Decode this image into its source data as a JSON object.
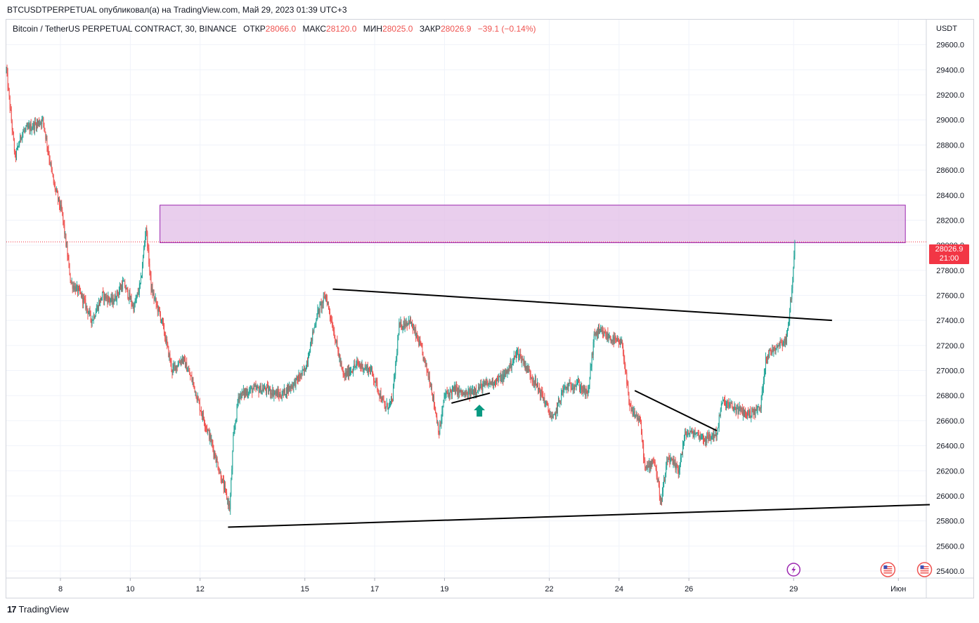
{
  "header": {
    "caption": "BTCUSDTPERPETUAL опубликовал(а) на TradingView.com, Май 29, 2023 01:39 UTC+3"
  },
  "legend": {
    "symbol": "Bitcoin / TetherUS PERPETUAL CONTRACT, 30, BINANCE",
    "open_label": "ОТКР",
    "open": "28066.0",
    "high_label": "МАКС",
    "high": "28120.0",
    "low_label": "МИН",
    "low": "28025.0",
    "close_label": "ЗАКР",
    "close": "28026.9",
    "change": "−39.1 (−0.14%)"
  },
  "price_axis": {
    "currency": "USDT",
    "last_price": "28026.9",
    "countdown": "21:00"
  },
  "footer": {
    "brand": "TradingView"
  },
  "colors": {
    "up": "#26a69a",
    "down": "#ef5350",
    "zone_fill": "#e1bee7",
    "zone_border": "#9c27b0",
    "last_price": "#f23645",
    "grid": "#f0f3fa"
  },
  "chart_data": {
    "type": "candlestick",
    "title": "Bitcoin / TetherUS PERPETUAL CONTRACT, 30, BINANCE",
    "ylim": [
      25400,
      29800
    ],
    "y_ticks": [
      29600,
      29400,
      29200,
      29000,
      28800,
      28600,
      28400,
      28200,
      28000,
      27800,
      27600,
      27400,
      27200,
      27000,
      26800,
      26600,
      26400,
      26200,
      26000,
      25800,
      25600,
      25400
    ],
    "x_ticks": [
      {
        "day": 8,
        "label": "8"
      },
      {
        "day": 10,
        "label": "10"
      },
      {
        "day": 12,
        "label": "12"
      },
      {
        "day": 15,
        "label": "15"
      },
      {
        "day": 17,
        "label": "17"
      },
      {
        "day": 19,
        "label": "19"
      },
      {
        "day": 22,
        "label": "22"
      },
      {
        "day": 24,
        "label": "24"
      },
      {
        "day": 26,
        "label": "26"
      },
      {
        "day": 29,
        "label": "29"
      },
      {
        "day": 32,
        "label": "Июн"
      }
    ],
    "x_range_days": [
      6.45,
      32.8
    ],
    "price_path": [
      [
        6.45,
        29400
      ],
      [
        6.7,
        28700
      ],
      [
        6.9,
        28900
      ],
      [
        7.2,
        28950
      ],
      [
        7.5,
        29000
      ],
      [
        7.8,
        28500
      ],
      [
        8.05,
        28250
      ],
      [
        8.3,
        27700
      ],
      [
        8.6,
        27600
      ],
      [
        8.9,
        27400
      ],
      [
        9.2,
        27600
      ],
      [
        9.5,
        27550
      ],
      [
        9.8,
        27700
      ],
      [
        10.1,
        27500
      ],
      [
        10.3,
        27700
      ],
      [
        10.45,
        28150
      ],
      [
        10.6,
        27650
      ],
      [
        10.9,
        27400
      ],
      [
        11.2,
        27000
      ],
      [
        11.5,
        27100
      ],
      [
        11.8,
        26900
      ],
      [
        12.0,
        26700
      ],
      [
        12.3,
        26450
      ],
      [
        12.55,
        26200
      ],
      [
        12.85,
        25900
      ],
      [
        12.95,
        26450
      ],
      [
        13.1,
        26800
      ],
      [
        13.5,
        26850
      ],
      [
        13.9,
        26850
      ],
      [
        14.3,
        26800
      ],
      [
        14.7,
        26900
      ],
      [
        15.0,
        27000
      ],
      [
        15.35,
        27450
      ],
      [
        15.6,
        27600
      ],
      [
        15.8,
        27350
      ],
      [
        16.1,
        26950
      ],
      [
        16.5,
        27050
      ],
      [
        16.9,
        27000
      ],
      [
        17.3,
        26700
      ],
      [
        17.5,
        26750
      ],
      [
        17.7,
        27350
      ],
      [
        18.0,
        27400
      ],
      [
        18.3,
        27200
      ],
      [
        18.6,
        26900
      ],
      [
        18.85,
        26500
      ],
      [
        19.0,
        26800
      ],
      [
        19.3,
        26850
      ],
      [
        19.6,
        26800
      ],
      [
        19.9,
        26850
      ],
      [
        20.3,
        26900
      ],
      [
        20.7,
        26950
      ],
      [
        21.1,
        27150
      ],
      [
        21.5,
        26950
      ],
      [
        21.8,
        26800
      ],
      [
        22.1,
        26600
      ],
      [
        22.4,
        26850
      ],
      [
        22.8,
        26900
      ],
      [
        23.1,
        26800
      ],
      [
        23.3,
        27300
      ],
      [
        23.5,
        27300
      ],
      [
        23.8,
        27250
      ],
      [
        24.1,
        27200
      ],
      [
        24.3,
        26700
      ],
      [
        24.6,
        26600
      ],
      [
        24.75,
        26200
      ],
      [
        25.0,
        26300
      ],
      [
        25.2,
        25950
      ],
      [
        25.4,
        26300
      ],
      [
        25.7,
        26200
      ],
      [
        25.9,
        26500
      ],
      [
        26.2,
        26500
      ],
      [
        26.5,
        26450
      ],
      [
        26.8,
        26500
      ],
      [
        26.95,
        26750
      ],
      [
        27.3,
        26700
      ],
      [
        27.7,
        26650
      ],
      [
        28.05,
        26700
      ],
      [
        28.2,
        27100
      ],
      [
        28.5,
        27200
      ],
      [
        28.8,
        27250
      ],
      [
        28.95,
        27650
      ],
      [
        29.05,
        28026.9
      ]
    ],
    "annotations": {
      "resistance_zone": {
        "x_from": 10.85,
        "x_to": 32.2,
        "y_low": 28020,
        "y_high": 28320
      },
      "trendlines": [
        {
          "from": [
            12.8,
            25750
          ],
          "to": [
            32.9,
            25930
          ]
        },
        {
          "from": [
            15.8,
            27650
          ],
          "to": [
            30.1,
            27400
          ]
        },
        {
          "from": [
            24.45,
            26840
          ],
          "to": [
            26.8,
            26520
          ]
        },
        {
          "from": [
            19.2,
            26740
          ],
          "to": [
            20.3,
            26820
          ]
        }
      ],
      "up_arrow": {
        "x": 20.0,
        "y": 26700
      },
      "event_icons": [
        {
          "x": 29.0,
          "name": "lightning-event-icon"
        },
        {
          "x": 31.7,
          "name": "us-flag-event-icon"
        },
        {
          "x": 32.75,
          "name": "us-flag-event-icon"
        }
      ]
    }
  }
}
